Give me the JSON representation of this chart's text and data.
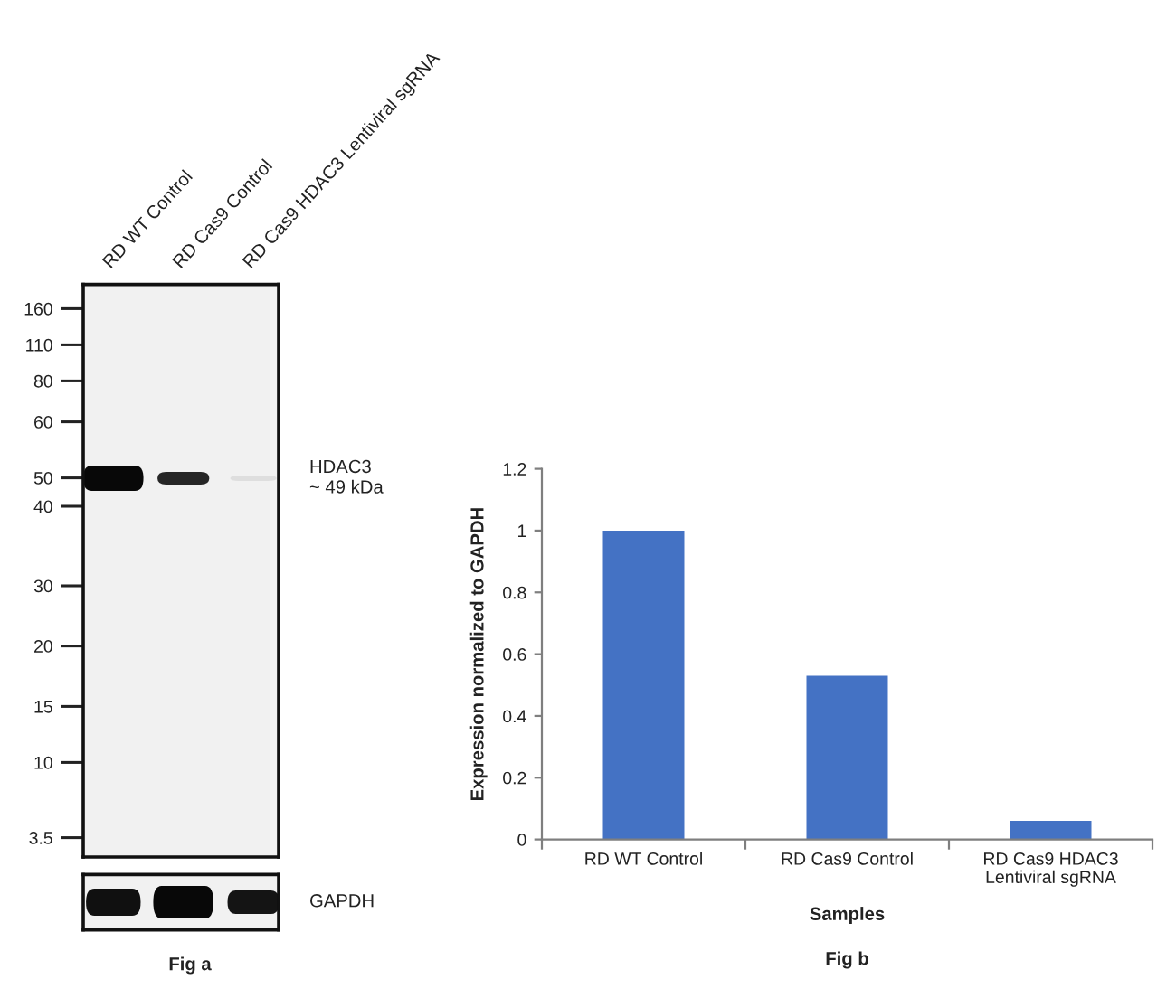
{
  "chart_data": [
    {
      "type": "other",
      "categories": [
        "RD WT Control",
        "RD Cas9 Control",
        "RD Cas9 HDAC3 Lentiviral sgRNA"
      ],
      "annotations": [
        "160",
        "110",
        "80",
        "60",
        "50",
        "40",
        "30",
        "20",
        "15",
        "10",
        "3.5",
        "HDAC3\n~ 49 kDa",
        "GAPDH",
        "Fig a"
      ]
    },
    {
      "type": "bar",
      "categories": [
        "RD WT Control",
        "RD Cas9 Control",
        "RD Cas9 HDAC3\nLentiviral sgRNA"
      ],
      "values": [
        1,
        0.53,
        0.06
      ],
      "color": "#4472c4",
      "ylim": [
        0,
        1.2
      ],
      "yticks": [
        0,
        0.2,
        0.4,
        0.6,
        0.8,
        1,
        1.2
      ],
      "xlabel": "Samples",
      "ylabel": "Expression normalized to GAPDH",
      "annotations": [
        "Fig b"
      ]
    }
  ]
}
